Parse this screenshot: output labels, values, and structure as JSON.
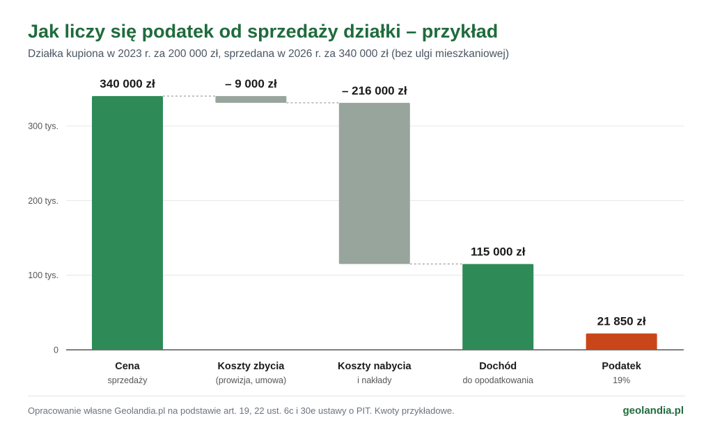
{
  "header": {
    "title": "Jak liczy się podatek od sprzedaży działki – przykład",
    "subtitle": "Działka kupiona w 2023 r. za 200 000 zł, sprzedana w 2026 r. za 340 000 zł (bez ulgi mieszkaniowej)"
  },
  "footer": {
    "source": "Opracowanie własne Geolandia.pl na podstawie art. 19, 22 ust. 6c i 30e ustawy o PIT. Kwoty przykładowe.",
    "brand": "geolandia.pl"
  },
  "colors": {
    "positive": "#2e8b57",
    "deduction": "#98a59d",
    "tax": "#c9461a",
    "title": "#1f6b3d"
  },
  "chart_data": {
    "type": "bar",
    "subtype": "waterfall",
    "ylim": [
      0,
      360000
    ],
    "yticks": [
      {
        "value": 0,
        "label": "0"
      },
      {
        "value": 100000,
        "label": "100 tys."
      },
      {
        "value": 200000,
        "label": "200 tys."
      },
      {
        "value": 300000,
        "label": "300 tys."
      }
    ],
    "grid": true,
    "bars": [
      {
        "category": "Cena",
        "sublabel": "sprzedaży",
        "start": 0,
        "end": 340000,
        "value_label": "340 000 zł",
        "kind": "positive"
      },
      {
        "category": "Koszty zbycia",
        "sublabel": "(prowizja, umowa)",
        "start": 331000,
        "end": 340000,
        "value_label": "– 9 000 zł",
        "kind": "deduction"
      },
      {
        "category": "Koszty nabycia",
        "sublabel": "i nakłady",
        "start": 115000,
        "end": 331000,
        "value_label": "– 216 000 zł",
        "kind": "deduction"
      },
      {
        "category": "Dochód",
        "sublabel": "do opodatkowania",
        "start": 0,
        "end": 115000,
        "value_label": "115 000 zł",
        "kind": "positive"
      },
      {
        "category": "Podatek",
        "sublabel": "19%",
        "start": 0,
        "end": 21850,
        "value_label": "21 850 zł",
        "kind": "tax"
      }
    ],
    "connectors": [
      {
        "from": 0,
        "to": 1,
        "value": 340000
      },
      {
        "from": 1,
        "to": 2,
        "value": 331000
      },
      {
        "from": 2,
        "to": 3,
        "value": 115000
      }
    ]
  }
}
